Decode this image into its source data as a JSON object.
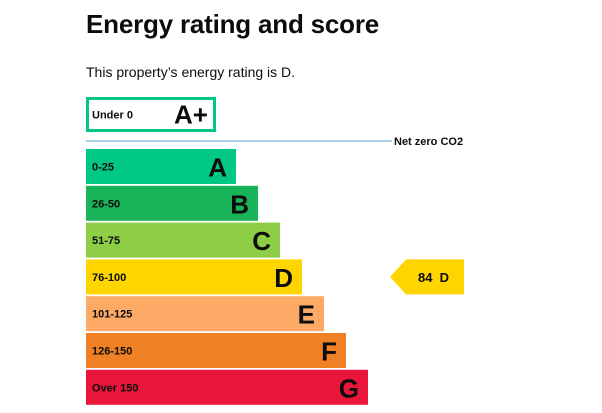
{
  "page": {
    "title": "Energy rating and score",
    "intro": "This property’s energy rating is D."
  },
  "chart_data": {
    "type": "bar",
    "bands": [
      {
        "letter": "A+",
        "range": "Under 0",
        "color": "#ffffff",
        "border": "#00c781"
      },
      {
        "letter": "A",
        "range": "0-25",
        "color": "#00c781"
      },
      {
        "letter": "B",
        "range": "26-50",
        "color": "#19b459"
      },
      {
        "letter": "C",
        "range": "51-75",
        "color": "#8dce46"
      },
      {
        "letter": "D",
        "range": "76-100",
        "color": "#ffd500"
      },
      {
        "letter": "E",
        "range": "101-125",
        "color": "#fcaa65"
      },
      {
        "letter": "F",
        "range": "126-150",
        "color": "#ef8023"
      },
      {
        "letter": "G",
        "range": "Over 150",
        "color": "#e9153b"
      }
    ],
    "net_zero_label": "Net zero CO2",
    "net_zero_line_color": "#a9cfe8",
    "current": {
      "score": 84,
      "letter": "D",
      "label": "84  D",
      "color": "#ffd500"
    }
  }
}
